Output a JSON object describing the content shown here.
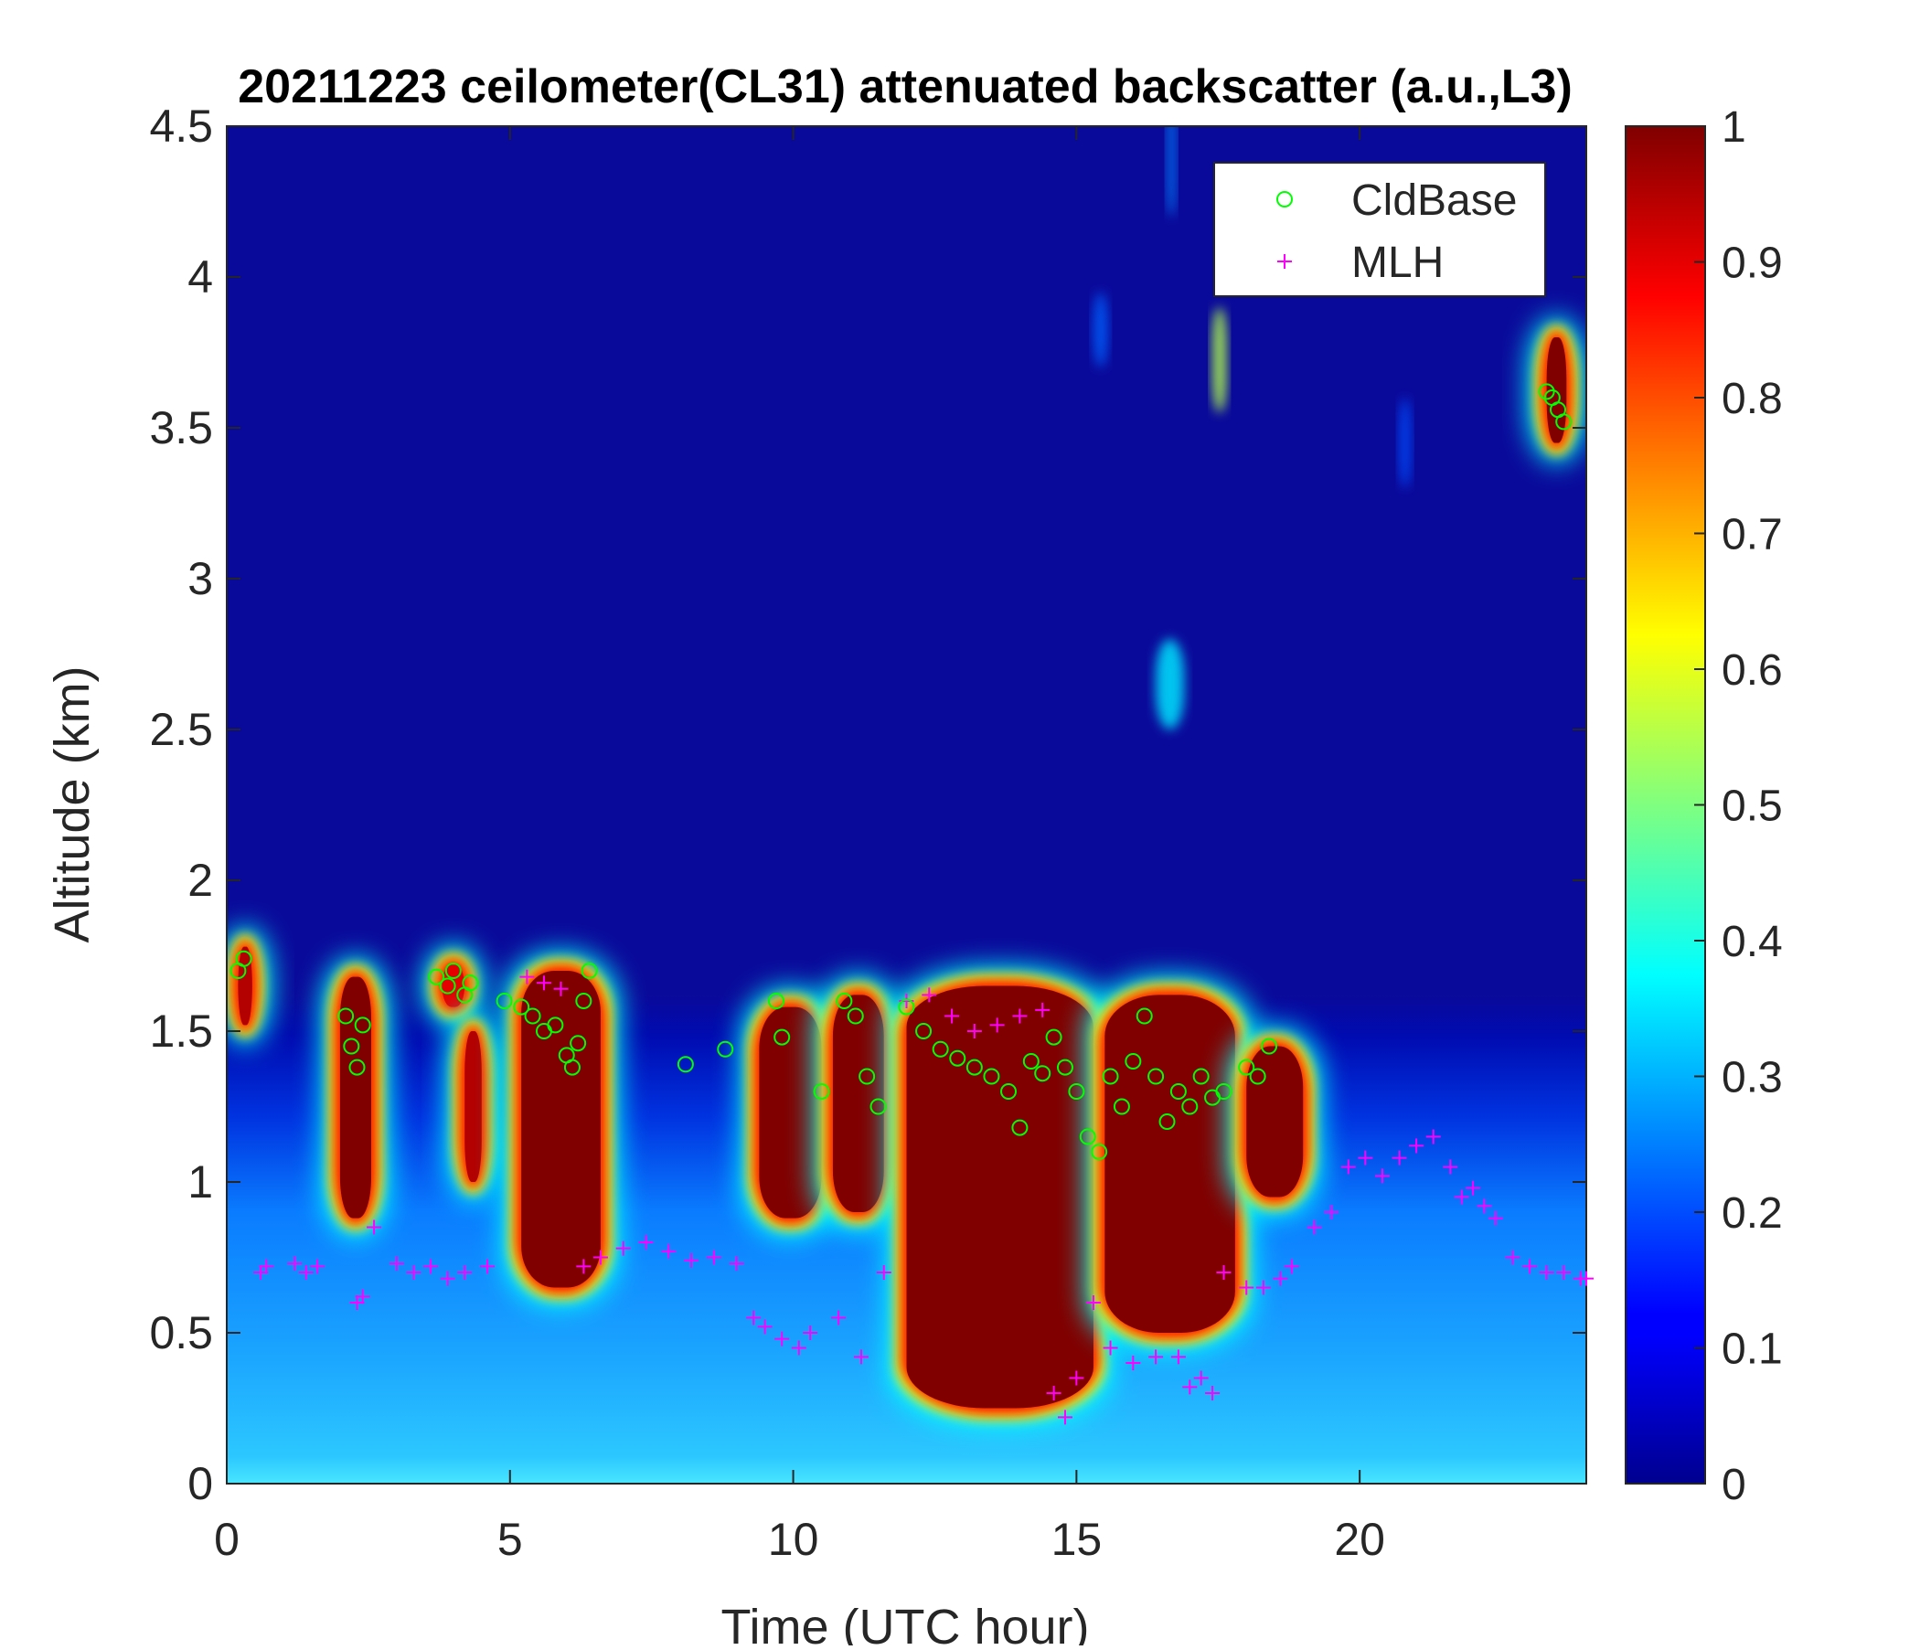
{
  "chart_data": {
    "type": "heatmap",
    "title": "20211223 ceilometer(CL31) attenuated backscatter (a.u.,L3)",
    "xlabel": "Time (UTC hour)",
    "ylabel": "Altitude (km)",
    "xlim": [
      0,
      24
    ],
    "ylim": [
      0,
      4.5
    ],
    "xticks": [
      "0",
      "5",
      "10",
      "15",
      "20"
    ],
    "yticks": [
      "0",
      "0.5",
      "1",
      "1.5",
      "2",
      "2.5",
      "3",
      "3.5",
      "4",
      "4.5"
    ],
    "colorbar": {
      "colormap": "jet",
      "range": [
        0,
        1
      ],
      "ticks": [
        "0",
        "0.1",
        "0.2",
        "0.3",
        "0.4",
        "0.5",
        "0.6",
        "0.7",
        "0.8",
        "0.9",
        "1"
      ]
    },
    "legend": {
      "placement": "top-right",
      "entries": [
        {
          "label": "CldBase",
          "marker": "circle",
          "color": "#00ff00"
        },
        {
          "label": "MLH",
          "marker": "plus",
          "color": "#ff00ff"
        }
      ]
    },
    "clouds": [
      {
        "t0": 0.2,
        "t1": 0.45,
        "top": 1.78,
        "bottom": 1.52,
        "value": 0.95
      },
      {
        "t0": 2.0,
        "t1": 2.55,
        "top": 1.68,
        "bottom": 0.88,
        "value": 1.0
      },
      {
        "t0": 3.8,
        "t1": 4.2,
        "top": 1.72,
        "bottom": 1.58,
        "value": 0.9
      },
      {
        "t0": 4.2,
        "t1": 4.5,
        "top": 1.5,
        "bottom": 1.0,
        "value": 0.95
      },
      {
        "t0": 5.2,
        "t1": 6.6,
        "top": 1.7,
        "bottom": 0.65,
        "value": 1.0
      },
      {
        "t0": 9.4,
        "t1": 10.5,
        "top": 1.58,
        "bottom": 0.88,
        "value": 1.0
      },
      {
        "t0": 10.7,
        "t1": 11.6,
        "top": 1.62,
        "bottom": 0.9,
        "value": 1.0
      },
      {
        "t0": 12.0,
        "t1": 15.3,
        "top": 1.65,
        "bottom": 0.25,
        "value": 1.0
      },
      {
        "t0": 15.5,
        "t1": 17.8,
        "top": 1.62,
        "bottom": 0.5,
        "value": 1.0
      },
      {
        "t0": 18.0,
        "t1": 19.0,
        "top": 1.45,
        "bottom": 0.95,
        "value": 1.0
      },
      {
        "t0": 23.3,
        "t1": 23.65,
        "top": 3.8,
        "bottom": 3.45,
        "value": 1.0
      }
    ],
    "faint_features": [
      {
        "t0": 16.4,
        "t1": 16.9,
        "top": 2.8,
        "bottom": 2.5,
        "value": 0.35
      },
      {
        "t0": 17.4,
        "t1": 17.65,
        "top": 3.9,
        "bottom": 3.55,
        "value": 0.55
      },
      {
        "t0": 16.6,
        "t1": 16.75,
        "top": 4.6,
        "bottom": 4.2,
        "value": 0.25
      },
      {
        "t0": 15.3,
        "t1": 15.55,
        "top": 3.95,
        "bottom": 3.7,
        "value": 0.22
      },
      {
        "t0": 20.7,
        "t1": 20.9,
        "top": 3.6,
        "bottom": 3.3,
        "value": 0.2
      }
    ],
    "cloud_base": {
      "x": [
        0.2,
        0.3,
        2.1,
        2.2,
        2.3,
        2.4,
        3.7,
        3.9,
        4.0,
        4.2,
        4.3,
        4.9,
        5.2,
        5.4,
        5.6,
        5.8,
        6.0,
        6.1,
        6.2,
        6.3,
        6.4,
        8.1,
        8.8,
        9.7,
        9.8,
        10.5,
        10.9,
        11.1,
        11.3,
        11.5,
        12.0,
        12.3,
        12.6,
        12.9,
        13.2,
        13.5,
        13.8,
        14.0,
        14.2,
        14.4,
        14.6,
        14.8,
        15.0,
        15.2,
        15.4,
        15.6,
        15.8,
        16.0,
        16.2,
        16.4,
        16.6,
        16.8,
        17.0,
        17.2,
        17.4,
        17.6,
        18.0,
        18.2,
        18.4,
        23.3,
        23.4,
        23.5,
        23.6
      ],
      "y": [
        1.7,
        1.74,
        1.55,
        1.45,
        1.38,
        1.52,
        1.68,
        1.65,
        1.7,
        1.62,
        1.66,
        1.6,
        1.58,
        1.55,
        1.5,
        1.52,
        1.42,
        1.38,
        1.46,
        1.6,
        1.7,
        1.39,
        1.44,
        1.6,
        1.48,
        1.3,
        1.6,
        1.55,
        1.35,
        1.25,
        1.58,
        1.5,
        1.44,
        1.41,
        1.38,
        1.35,
        1.3,
        1.18,
        1.4,
        1.36,
        1.48,
        1.38,
        1.3,
        1.15,
        1.1,
        1.35,
        1.25,
        1.4,
        1.55,
        1.35,
        1.2,
        1.3,
        1.25,
        1.35,
        1.28,
        1.3,
        1.38,
        1.35,
        1.45,
        3.62,
        3.6,
        3.56,
        3.52
      ]
    },
    "mlh": {
      "x": [
        0.6,
        0.7,
        1.2,
        1.4,
        1.6,
        2.3,
        2.4,
        2.6,
        3.0,
        3.3,
        3.6,
        3.9,
        4.2,
        4.6,
        5.3,
        5.6,
        5.9,
        6.3,
        6.6,
        7.0,
        7.4,
        7.8,
        8.2,
        8.6,
        9.0,
        9.3,
        9.5,
        9.8,
        10.1,
        10.3,
        10.8,
        11.2,
        11.6,
        12.0,
        12.4,
        12.8,
        13.2,
        13.6,
        14.0,
        14.4,
        14.6,
        14.8,
        15.0,
        15.3,
        15.6,
        16.0,
        16.4,
        16.8,
        17.0,
        17.2,
        17.4,
        17.6,
        18.0,
        18.3,
        18.6,
        18.8,
        19.2,
        19.5,
        19.8,
        20.1,
        20.4,
        20.7,
        21.0,
        21.3,
        21.6,
        21.8,
        22.0,
        22.2,
        22.4,
        22.7,
        23.0,
        23.3,
        23.6,
        23.9,
        24.0
      ],
      "y": [
        0.7,
        0.72,
        0.73,
        0.7,
        0.72,
        0.6,
        0.62,
        0.85,
        0.73,
        0.7,
        0.72,
        0.68,
        0.7,
        0.72,
        1.68,
        1.66,
        1.64,
        0.72,
        0.75,
        0.78,
        0.8,
        0.77,
        0.74,
        0.75,
        0.73,
        0.55,
        0.52,
        0.48,
        0.45,
        0.5,
        0.55,
        0.42,
        0.7,
        1.6,
        1.62,
        1.55,
        1.5,
        1.52,
        1.55,
        1.57,
        0.3,
        0.22,
        0.35,
        0.6,
        0.45,
        0.4,
        0.42,
        0.42,
        0.32,
        0.35,
        0.3,
        0.7,
        0.65,
        0.65,
        0.68,
        0.72,
        0.85,
        0.9,
        1.05,
        1.08,
        1.02,
        1.08,
        1.12,
        1.15,
        1.05,
        0.95,
        0.98,
        0.92,
        0.88,
        0.75,
        0.72,
        0.7,
        0.7,
        0.68,
        0.68
      ]
    }
  }
}
